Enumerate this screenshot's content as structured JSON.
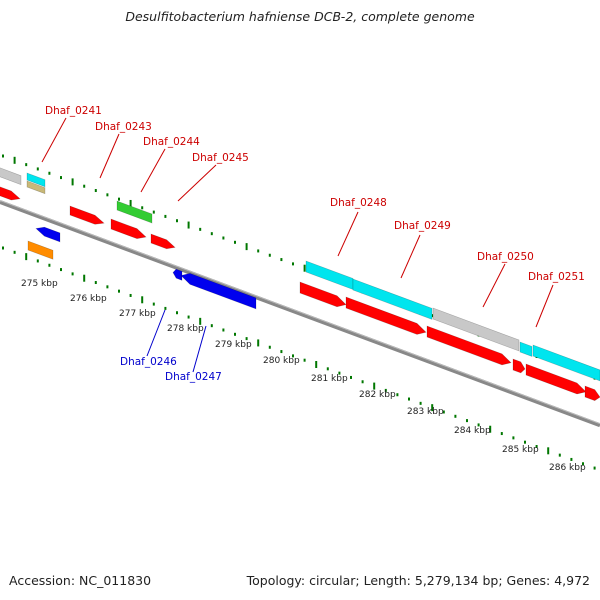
{
  "title": "Desulfitobacterium hafniense DCB-2, complete genome",
  "footer": {
    "accession": "Accession: NC_011830",
    "info": "Topology: circular; Length: 5,279,134 bp; Genes: 4,972"
  },
  "colors": {
    "red": "#ff0000",
    "cyan": "#00e5ee",
    "gray": "#c8c8c8",
    "green": "#33cc33",
    "blue": "#0000ee",
    "orange": "#ff8c00",
    "tan": "#c8b878",
    "backbone": "#888888",
    "tick": "#007700",
    "label_top": "#cc0000",
    "label_bottom": "#0000cc"
  },
  "scale_labels": [
    "275 kbp",
    "276 kbp",
    "277 kbp",
    "278 kbp",
    "279 kbp",
    "280 kbp",
    "281 kbp",
    "282 kbp",
    "283 kbp",
    "284 kbp",
    "285 kbp",
    "286 kbp"
  ],
  "gene_labels_top": [
    "Dhaf_0241",
    "Dhaf_0243",
    "Dhaf_0244",
    "Dhaf_0245",
    "Dhaf_0248",
    "Dhaf_0249",
    "Dhaf_0250",
    "Dhaf_0251"
  ],
  "gene_labels_bottom": [
    "Dhaf_0246",
    "Dhaf_0247"
  ]
}
